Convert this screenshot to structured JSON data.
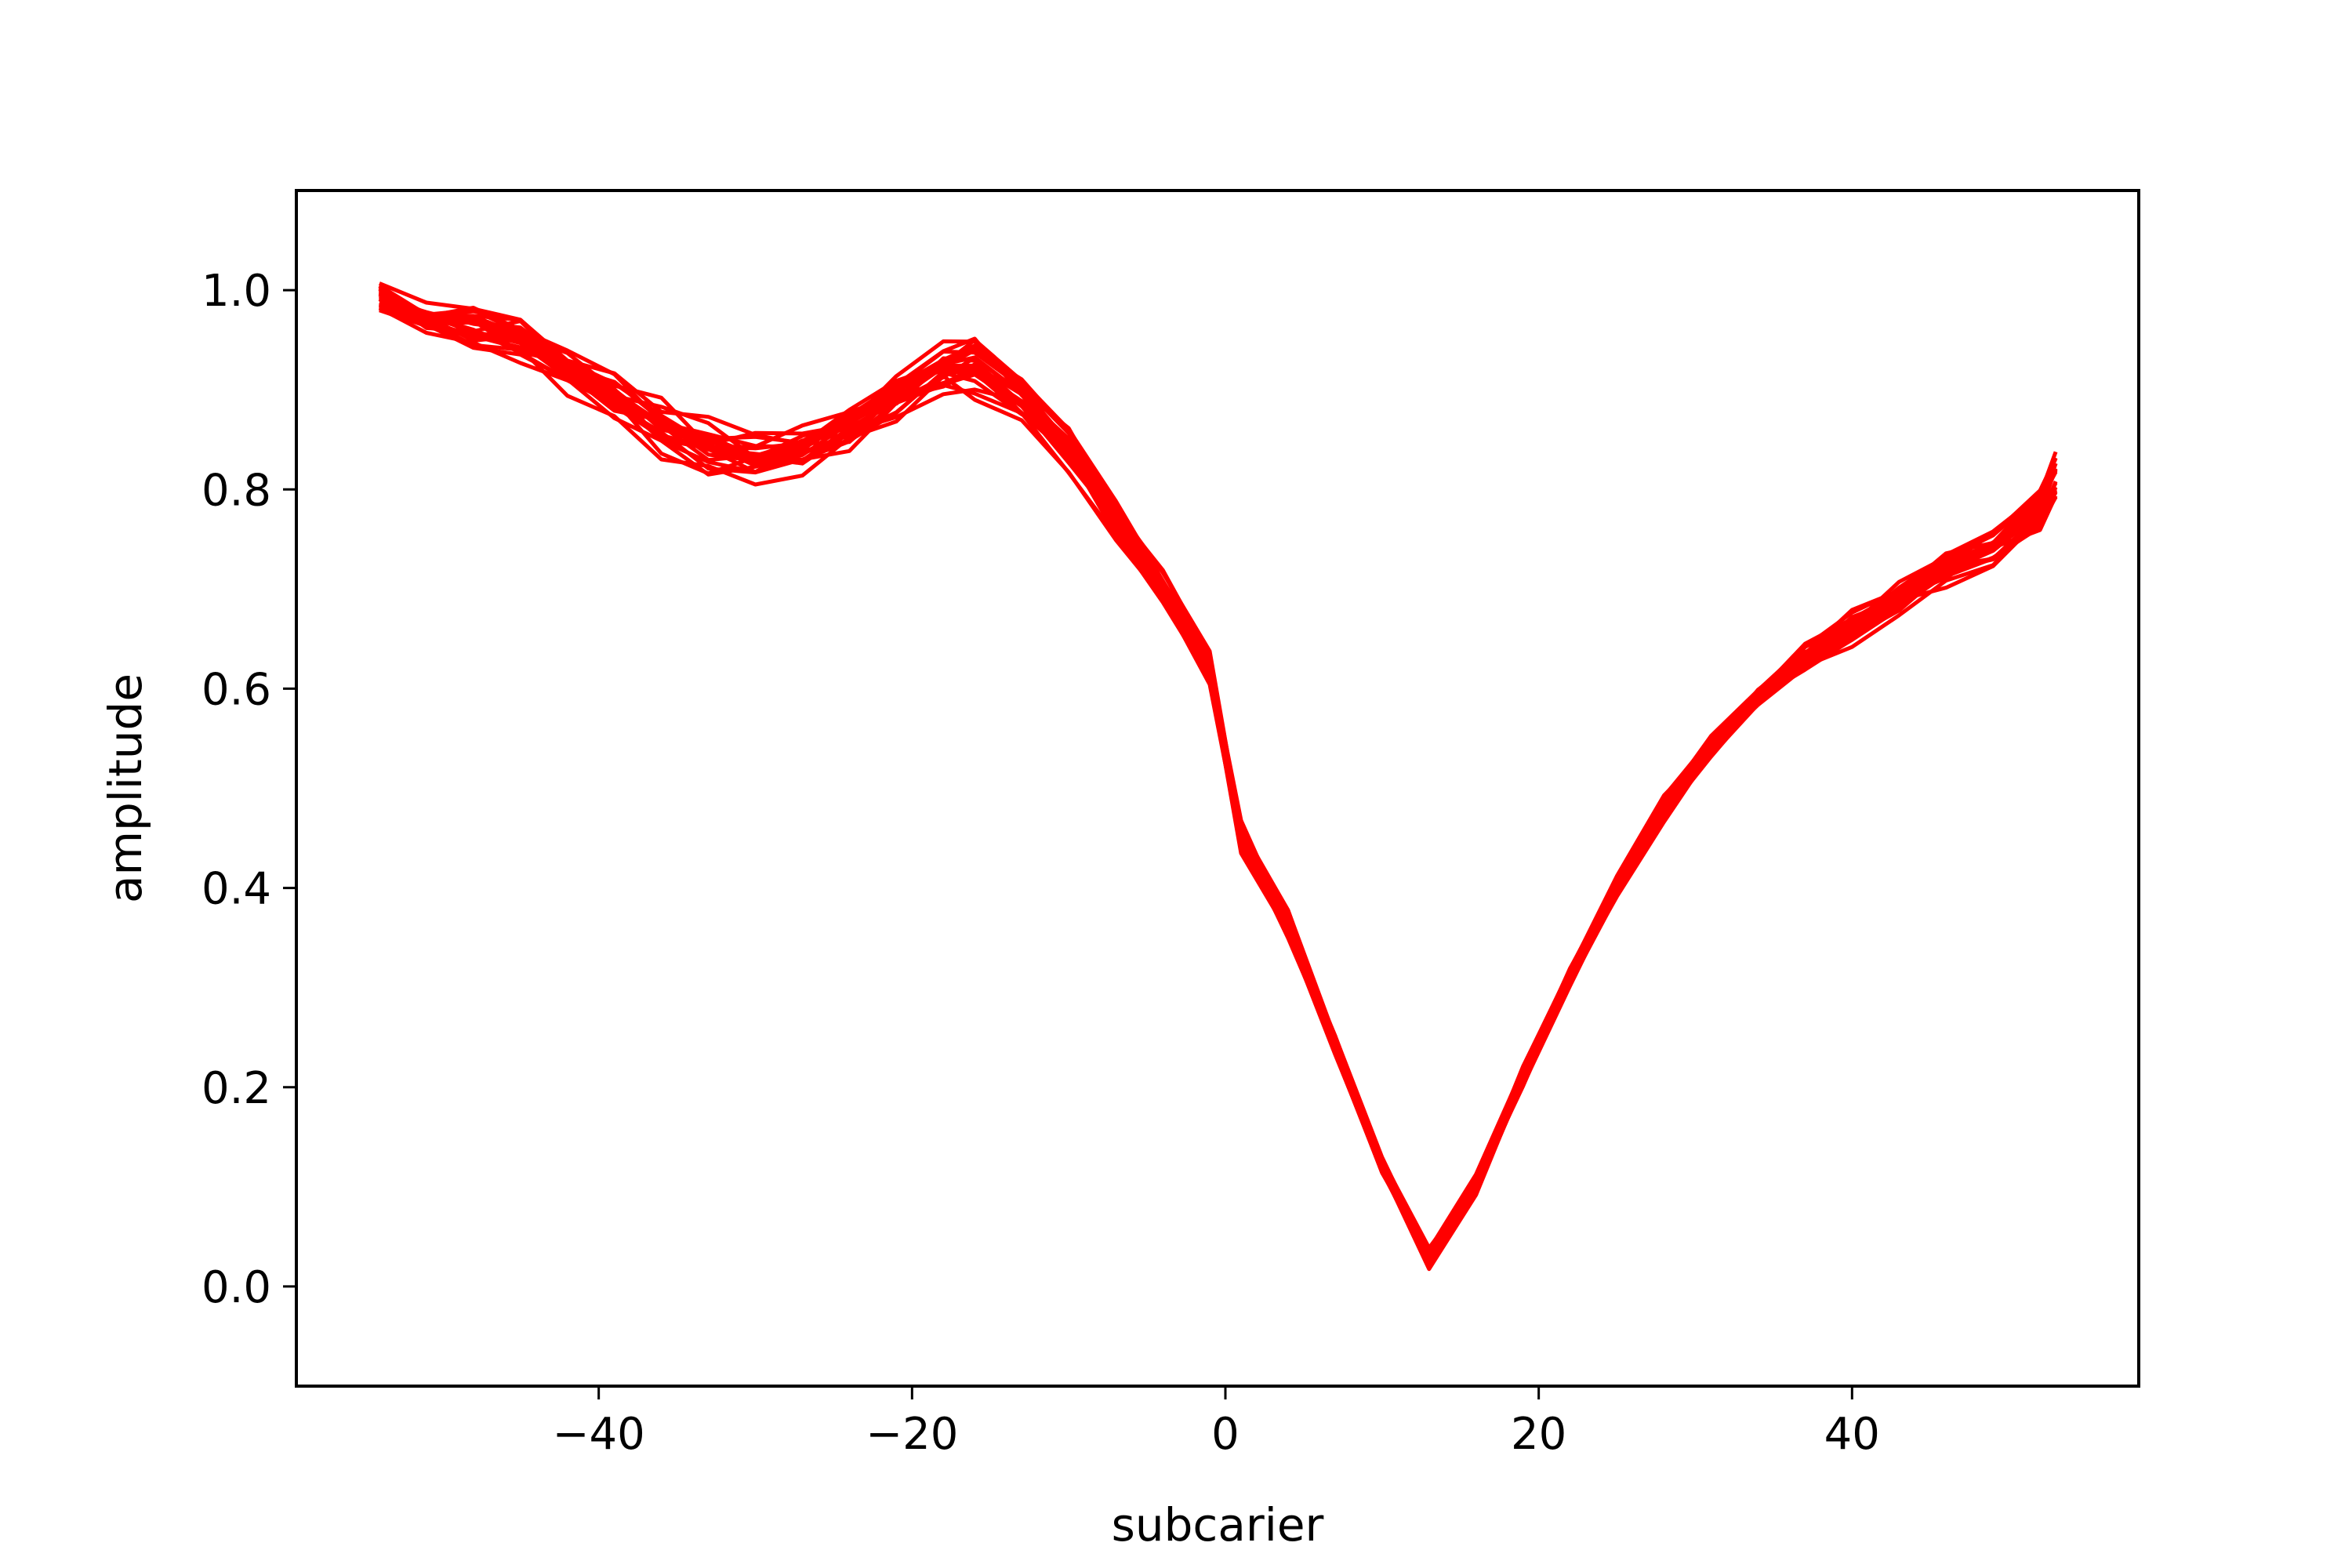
{
  "chart_data": {
    "type": "line",
    "title": "",
    "xlabel": "subcarier",
    "ylabel": "amplitude",
    "xlim": [
      -59.3,
      58.3
    ],
    "ylim": [
      -0.1,
      1.1
    ],
    "xticks": [
      -40,
      -20,
      0,
      20,
      40
    ],
    "xtick_labels": [
      "−40",
      "−20",
      "0",
      "20",
      "40"
    ],
    "yticks": [
      0.0,
      0.2,
      0.4,
      0.6,
      0.8,
      1.0
    ],
    "ytick_labels": [
      "0.0",
      "0.2",
      "0.4",
      "0.6",
      "0.8",
      "1.0"
    ],
    "grid": false,
    "line_color": "#ff0000",
    "series_count": 24,
    "x": [
      -54,
      -51,
      -48,
      -45,
      -42,
      -39,
      -36,
      -33,
      -30,
      -27,
      -24,
      -21,
      -18,
      -16,
      -13,
      -10,
      -7,
      -4,
      -1,
      1,
      4,
      7,
      10,
      13,
      16,
      19,
      22,
      25,
      28,
      31,
      34,
      37,
      40,
      43,
      46,
      49,
      52,
      53
    ],
    "mean": [
      0.99,
      0.97,
      0.96,
      0.95,
      0.92,
      0.89,
      0.86,
      0.84,
      0.83,
      0.84,
      0.86,
      0.89,
      0.92,
      0.92,
      0.89,
      0.84,
      0.77,
      0.7,
      0.62,
      0.45,
      0.36,
      0.24,
      0.12,
      0.03,
      0.1,
      0.21,
      0.31,
      0.4,
      0.48,
      0.54,
      0.59,
      0.63,
      0.66,
      0.69,
      0.72,
      0.74,
      0.78,
      0.81
    ],
    "spread": [
      0.03,
      0.03,
      0.04,
      0.04,
      0.04,
      0.04,
      0.05,
      0.05,
      0.04,
      0.04,
      0.04,
      0.04,
      0.05,
      0.05,
      0.04,
      0.04,
      0.03,
      0.03,
      0.03,
      0.03,
      0.03,
      0.02,
      0.02,
      0.02,
      0.02,
      0.02,
      0.02,
      0.02,
      0.02,
      0.02,
      0.02,
      0.03,
      0.03,
      0.03,
      0.03,
      0.03,
      0.04,
      0.05
    ]
  }
}
